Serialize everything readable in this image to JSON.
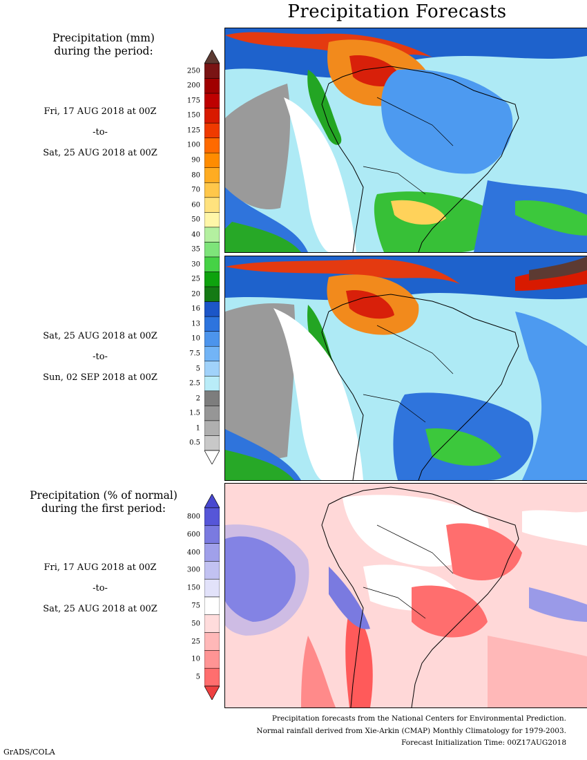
{
  "title": "Precipitation Forecasts",
  "precip_heading": [
    "Precipitation (mm)",
    "during the period:"
  ],
  "period1": {
    "start": "Fri, 17 AUG 2018 at 00Z",
    "sep": "-to-",
    "end": "Sat, 25 AUG 2018 at 00Z"
  },
  "period2": {
    "start": "Sat, 25 AUG 2018 at 00Z",
    "sep": "-to-",
    "end": "Sun, 02 SEP 2018 at 00Z"
  },
  "anomaly_heading": [
    "Precipitation (% of normal)",
    "during the first period:"
  ],
  "period3": {
    "start": "Fri, 17 AUG 2018 at 00Z",
    "sep": "-to-",
    "end": "Sat, 25 AUG 2018 at 00Z"
  },
  "mm_scale": {
    "labels": [
      "250",
      "200",
      "175",
      "150",
      "125",
      "100",
      "90",
      "80",
      "70",
      "60",
      "50",
      "40",
      "35",
      "30",
      "25",
      "20",
      "16",
      "13",
      "10",
      "7.5",
      "5",
      "2.5",
      "2",
      "1.5",
      "1",
      "0.5"
    ],
    "colors": [
      "#7a1414",
      "#a00000",
      "#be0000",
      "#d81a00",
      "#ef3a00",
      "#ff6a00",
      "#ff8c00",
      "#ffac22",
      "#ffc74a",
      "#ffe27e",
      "#fff6a8",
      "#b4f0a0",
      "#7ee47a",
      "#46d246",
      "#0ea20e",
      "#157a15",
      "#1c56c8",
      "#2d74de",
      "#4c94ec",
      "#72b4f6",
      "#a0d2fa",
      "#b9ecf8",
      "#7d7d7d",
      "#969696",
      "#afafaf",
      "#c8c8c8"
    ],
    "top_arrow_color": "#5c3a32",
    "bottom_arrow_color": "#ffffff"
  },
  "pct_scale": {
    "labels": [
      "800",
      "600",
      "400",
      "300",
      "150",
      "75",
      "50",
      "25",
      "10",
      "5"
    ],
    "colors": [
      "#5656d8",
      "#7a7ae0",
      "#a0a0ea",
      "#c2c2f2",
      "#e2e2fa",
      "#ffffff",
      "#ffdcdc",
      "#ffb8b8",
      "#ff9494",
      "#ff6e6e"
    ],
    "top_arrow_color": "#4848d0",
    "bottom_arrow_color": "#ee4040"
  },
  "footer": [
    "Precipitation forecasts from the National Centers for Environmental Prediction.",
    "Normal rainfall derived from Xie-Arkin (CMAP) Monthly Climatology for 1979-2003.",
    "Forecast Initialization Time: 00Z17AUG2018"
  ],
  "credit": "GrADS/COLA"
}
